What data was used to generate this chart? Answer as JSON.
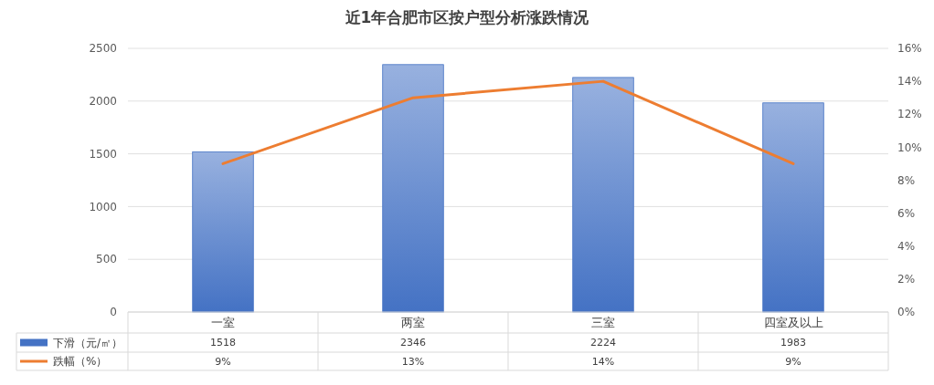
{
  "chart_data": {
    "type": "bar",
    "title": "近1年合肥市区按户型分析涨跌情况",
    "categories": [
      "一室",
      "两室",
      "三室",
      "四室及以上"
    ],
    "series": [
      {
        "name": "下滑（元/㎡）",
        "color": "#4472c4",
        "values": [
          1518,
          2346,
          2224,
          1983
        ],
        "value_labels": [
          "1518",
          "2346",
          "2224",
          "1983"
        ]
      },
      {
        "name": "跌幅（%）",
        "type": "line",
        "axis": "y2",
        "color": "#ed7d31",
        "values": [
          9,
          13,
          14,
          9
        ],
        "value_labels": [
          "9%",
          "13%",
          "14%",
          "9%"
        ]
      }
    ],
    "ylim": [
      0,
      2500
    ],
    "yticks": [
      0,
      500,
      1000,
      1500,
      2000,
      2500
    ],
    "y2lim": [
      0,
      16
    ],
    "y2ticks": [
      {
        "value": 0,
        "label": "0%"
      },
      {
        "value": 2,
        "label": "2%"
      },
      {
        "value": 4,
        "label": "4%"
      },
      {
        "value": 6,
        "label": "6%"
      },
      {
        "value": 8,
        "label": "8%"
      },
      {
        "value": 10,
        "label": "10%"
      },
      {
        "value": 12,
        "label": "12%"
      },
      {
        "value": 14,
        "label": "14%"
      },
      {
        "value": 16,
        "label": "16%"
      }
    ],
    "grid": "y",
    "legend": "bottom left",
    "marker": "none",
    "line_style": "solid"
  }
}
